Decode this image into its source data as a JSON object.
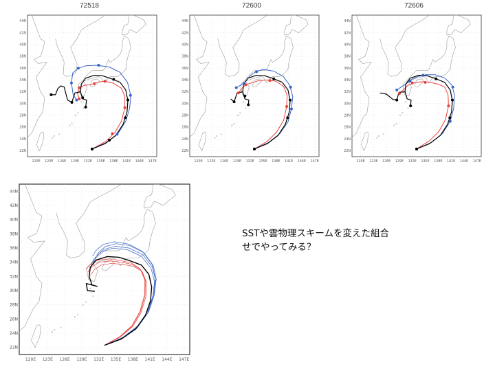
{
  "panels": [
    {
      "title": "72518"
    },
    {
      "title": "72600"
    },
    {
      "title": "72606"
    },
    {
      "title": ""
    }
  ],
  "lat_labels": [
    "44N",
    "42N",
    "40N",
    "38N",
    "36N",
    "34N",
    "32N",
    "30N",
    "28N",
    "26N",
    "24N",
    "22N"
  ],
  "lon_labels_small": [
    "120E",
    "123E",
    "126E",
    "129E",
    "132E",
    "135E",
    "138E",
    "141E",
    "144E",
    "147E"
  ],
  "lon_labels_large": [
    "120E",
    "123E",
    "126E",
    "129E",
    "132E",
    "135E",
    "138E",
    "141E",
    "144E",
    "147E"
  ],
  "note": {
    "line1": "SSTや雲物理スキームを変えた組合",
    "line2": "せでやってみる？"
  },
  "colors": {
    "observed": "#000000",
    "member_red": "#e8403a",
    "member_blue": "#3763c9",
    "coast": "#9a9a9a",
    "grid": "#cccccc"
  }
}
